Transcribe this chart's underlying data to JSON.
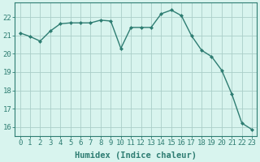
{
  "x": [
    0,
    1,
    2,
    3,
    4,
    5,
    6,
    7,
    8,
    9,
    10,
    11,
    12,
    13,
    14,
    15,
    16,
    17,
    18,
    19,
    20,
    21,
    22,
    23
  ],
  "y": [
    21.15,
    20.95,
    20.7,
    21.25,
    21.65,
    21.7,
    21.7,
    21.7,
    21.85,
    21.8,
    20.3,
    21.45,
    21.45,
    21.45,
    22.2,
    22.4,
    22.1,
    21.0,
    20.2,
    19.85,
    19.1,
    17.8,
    16.2,
    15.85
  ],
  "line_color": "#2e7d72",
  "marker": "D",
  "markersize": 2.0,
  "linewidth": 1.0,
  "bg_color": "#d8f4ee",
  "grid_color": "#aacec8",
  "axis_color": "#2e7d72",
  "xlabel": "Humidex (Indice chaleur)",
  "ylim": [
    15.5,
    22.8
  ],
  "xlim": [
    -0.5,
    23.5
  ],
  "yticks": [
    16,
    17,
    18,
    19,
    20,
    21,
    22
  ],
  "xticks": [
    0,
    1,
    2,
    3,
    4,
    5,
    6,
    7,
    8,
    9,
    10,
    11,
    12,
    13,
    14,
    15,
    16,
    17,
    18,
    19,
    20,
    21,
    22,
    23
  ],
  "label_fontsize": 7.5,
  "tick_fontsize": 6.5
}
